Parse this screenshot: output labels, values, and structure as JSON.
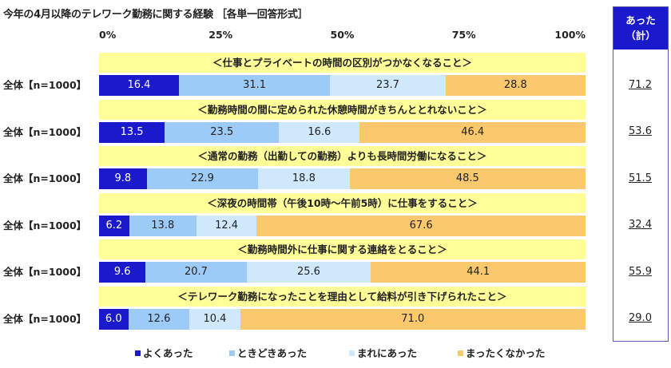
{
  "title": "今年の4月以降のテレワーク勤務に関する経験 ［各単一回答形式］",
  "axis": {
    "ticks": [
      "0%",
      "25%",
      "50%",
      "75%",
      "100%"
    ]
  },
  "totals_header": {
    "line1": "あった",
    "line2": "（計）"
  },
  "legend": [
    {
      "label": "よくあった",
      "color": "#1a1acc"
    },
    {
      "label": "ときどきあった",
      "color": "#9dcbf7"
    },
    {
      "label": "まれにあった",
      "color": "#cfe8fc"
    },
    {
      "label": "まったくなかった",
      "color": "#fcc86e"
    }
  ],
  "rows": [
    {
      "question": "＜仕事とプライベートの時間の区別がつかなくなること＞",
      "segment": "全体【n=1000】",
      "values": [
        "16.4",
        "31.1",
        "23.7",
        "28.8"
      ],
      "total": "71.2"
    },
    {
      "question": "＜勤務時間の間に定められた休憩時間がきちんととれないこと＞",
      "segment": "全体【n=1000】",
      "values": [
        "13.5",
        "23.5",
        "16.6",
        "46.4"
      ],
      "total": "53.6"
    },
    {
      "question": "＜通常の勤務（出勤しての勤務）よりも長時間労働になること＞",
      "segment": "全体【n=1000】",
      "values": [
        "9.8",
        "22.9",
        "18.8",
        "48.5"
      ],
      "total": "51.5"
    },
    {
      "question": "＜深夜の時間帯（午後10時～午前5時）に仕事をすること＞",
      "segment": "全体【n=1000】",
      "values": [
        "6.2",
        "13.8",
        "12.4",
        "67.6"
      ],
      "total": "32.4"
    },
    {
      "question": "＜勤務時間外に仕事に関する連絡をとること＞",
      "segment": "全体【n=1000】",
      "values": [
        "9.6",
        "20.7",
        "25.6",
        "44.1"
      ],
      "total": "55.9"
    },
    {
      "question": "＜テレワーク勤務になったことを理由として給料が引き下げられたこと＞",
      "segment": "全体【n=1000】",
      "values": [
        "6.0",
        "12.6",
        "10.4",
        "71.0"
      ],
      "total": "29.0"
    }
  ],
  "chart_data": {
    "type": "bar",
    "orientation": "horizontal-stacked-100",
    "title": "今年の4月以降のテレワーク勤務に関する経験 ［各単一回答形式］",
    "xlabel": "",
    "ylabel": "",
    "xlim": [
      0,
      100
    ],
    "x_ticks": [
      "0%",
      "25%",
      "50%",
      "75%",
      "100%"
    ],
    "legend_position": "bottom",
    "grid": false,
    "categories": [
      "＜仕事とプライベートの時間の区別がつかなくなること＞ 全体【n=1000】",
      "＜勤務時間の間に定められた休憩時間がきちんととれないこと＞ 全体【n=1000】",
      "＜通常の勤務（出勤しての勤務）よりも長時間労働になること＞ 全体【n=1000】",
      "＜深夜の時間帯（午後10時～午前5時）に仕事をすること＞ 全体【n=1000】",
      "＜勤務時間外に仕事に関する連絡をとること＞ 全体【n=1000】",
      "＜テレワーク勤務になったことを理由として給料が引き下げられたこと＞ 全体【n=1000】"
    ],
    "series": [
      {
        "name": "よくあった",
        "color": "#1a1acc",
        "values": [
          16.4,
          13.5,
          9.8,
          6.2,
          9.6,
          6.0
        ]
      },
      {
        "name": "ときどきあった",
        "color": "#9dcbf7",
        "values": [
          31.1,
          23.5,
          22.9,
          13.8,
          20.7,
          12.6
        ]
      },
      {
        "name": "まれにあった",
        "color": "#cfe8fc",
        "values": [
          23.7,
          16.6,
          18.8,
          12.4,
          25.6,
          10.4
        ]
      },
      {
        "name": "まったくなかった",
        "color": "#fcc86e",
        "values": [
          28.8,
          46.4,
          48.5,
          67.6,
          44.1,
          71.0
        ]
      }
    ],
    "annotations": {
      "header": "あった（計）",
      "values": [
        71.2,
        53.6,
        51.5,
        32.4,
        55.9,
        29.0
      ]
    }
  }
}
